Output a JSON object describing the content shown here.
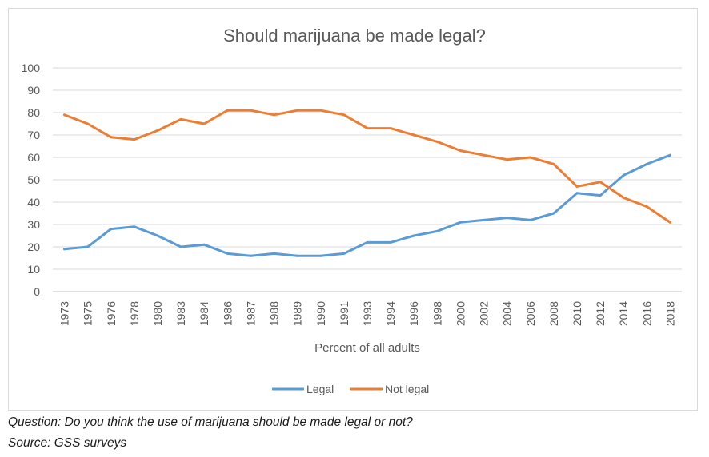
{
  "chart_data": {
    "type": "line",
    "title": "Should marijuana be made legal?",
    "xlabel": "Percent of all adults",
    "ylabel": "",
    "ylim": [
      0,
      100
    ],
    "yticks": [
      0,
      10,
      20,
      30,
      40,
      50,
      60,
      70,
      80,
      90,
      100
    ],
    "grid": true,
    "legend_position": "bottom",
    "categories": [
      "1973",
      "1975",
      "1976",
      "1978",
      "1980",
      "1983",
      "1984",
      "1986",
      "1987",
      "1988",
      "1989",
      "1990",
      "1991",
      "1993",
      "1994",
      "1996",
      "1998",
      "2000",
      "2002",
      "2004",
      "2006",
      "2008",
      "2010",
      "2012",
      "2014",
      "2016",
      "2018"
    ],
    "series": [
      {
        "name": "Legal",
        "color": "#5b9bd5",
        "values": [
          19,
          20,
          28,
          29,
          25,
          20,
          21,
          17,
          16,
          17,
          16,
          16,
          17,
          22,
          22,
          25,
          27,
          31,
          32,
          33,
          32,
          35,
          44,
          43,
          52,
          57,
          61
        ]
      },
      {
        "name": "Not legal",
        "color": "#ed7d31",
        "values": [
          79,
          75,
          69,
          68,
          72,
          77,
          75,
          81,
          81,
          79,
          81,
          81,
          79,
          73,
          73,
          70,
          67,
          63,
          61,
          59,
          60,
          57,
          47,
          49,
          42,
          38,
          31
        ]
      }
    ]
  },
  "captions": {
    "question": "Question: Do you think the use of marijuana should be made legal or not?",
    "source": "Source: GSS surveys"
  }
}
